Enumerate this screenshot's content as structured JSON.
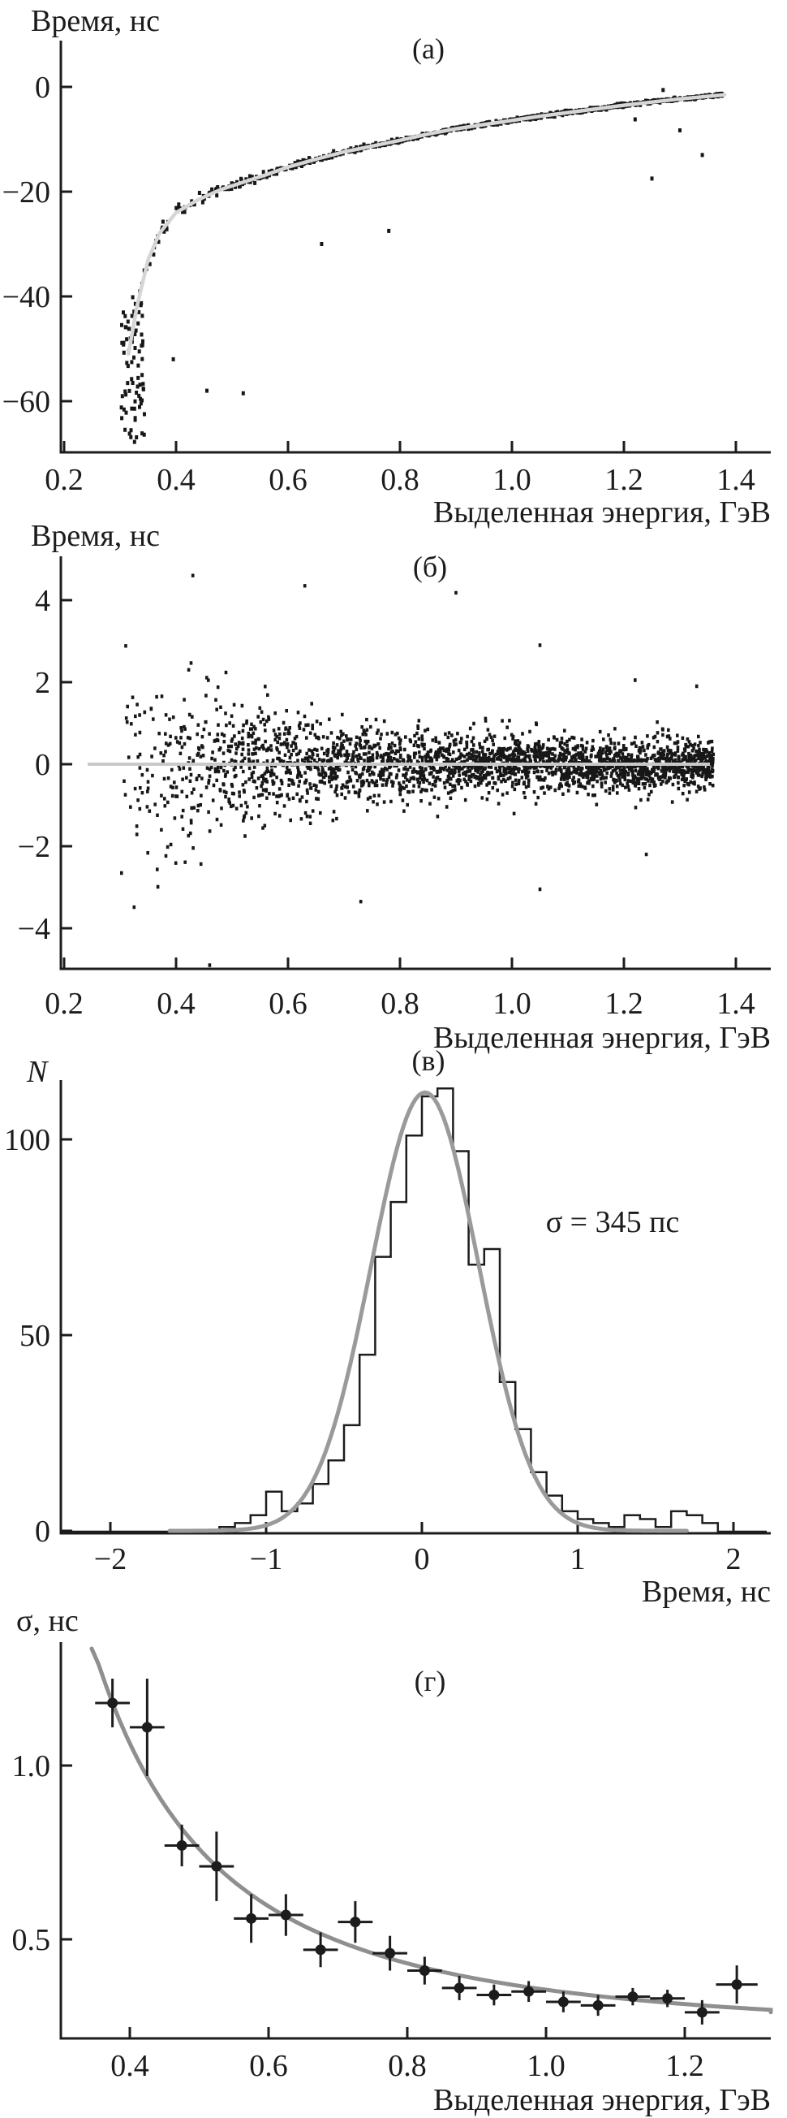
{
  "figure": {
    "description": "Four-panel timing/energy figure",
    "panel_letters": [
      "(а)",
      "(б)",
      "(в)",
      "(г)"
    ]
  },
  "palette": {
    "ink": "#1c1c1c",
    "point_black": "#171717",
    "light_curve": "#d6d6d6",
    "zero_line_gray": "#c9c9c9",
    "gauss_gray": "#9a9a9a",
    "fit_gray": "#8f8f8f"
  },
  "chart_data": [
    {
      "panel": "а",
      "title": "(а)",
      "type": "scatter",
      "xlabel": "Выделенная энергия, ГэВ",
      "ylabel": "Время, нс",
      "xlim": [
        0.2,
        1.47
      ],
      "ylim": [
        -71,
        9
      ],
      "grid": false,
      "x_ticks": [
        0.2,
        0.4,
        0.6,
        0.8,
        1.0,
        1.2,
        1.4
      ],
      "x_tick_labels": [
        "0.2",
        "0.4",
        "0.6",
        "0.8",
        "1.0",
        "1.2",
        "1.4"
      ],
      "y_ticks": [
        0,
        -20,
        -40,
        -60
      ],
      "y_tick_labels": [
        "0",
        "−20",
        "−40",
        "−60"
      ],
      "fit_curve": [
        [
          0.315,
          -51
        ],
        [
          0.33,
          -42
        ],
        [
          0.35,
          -33
        ],
        [
          0.37,
          -28
        ],
        [
          0.4,
          -24
        ],
        [
          0.44,
          -21.5
        ],
        [
          0.48,
          -19.6
        ],
        [
          0.52,
          -18.2
        ],
        [
          0.56,
          -16.8
        ],
        [
          0.6,
          -15.3
        ],
        [
          0.65,
          -13.8
        ],
        [
          0.7,
          -12.4
        ],
        [
          0.75,
          -11.3
        ],
        [
          0.8,
          -10.2
        ],
        [
          0.85,
          -9.0
        ],
        [
          0.9,
          -8.0
        ],
        [
          0.95,
          -7.2
        ],
        [
          1.0,
          -6.4
        ],
        [
          1.05,
          -5.6
        ],
        [
          1.1,
          -4.9
        ],
        [
          1.15,
          -4.2
        ],
        [
          1.2,
          -3.5
        ],
        [
          1.25,
          -2.9
        ],
        [
          1.3,
          -2.3
        ],
        [
          1.35,
          -1.8
        ],
        [
          1.38,
          -1.5
        ]
      ],
      "scatter_params": {
        "n": 850,
        "seed": 7,
        "x_min": 0.33,
        "x_span": 1.05,
        "x_pow": 0.7,
        "noise_scale": 0.5,
        "sigma_fit": {
          "a": 0.22,
          "b": 0.135
        }
      },
      "cliff_cluster": {
        "n": 80,
        "x_min": 0.302,
        "x_span": 0.042,
        "t_range": [
          -68,
          -40
        ]
      },
      "outliers": [
        [
          1.27,
          -0.6
        ],
        [
          1.34,
          -13
        ],
        [
          1.3,
          -8.3
        ],
        [
          1.22,
          -6.2
        ],
        [
          1.25,
          -17.5
        ],
        [
          0.78,
          -27.5
        ],
        [
          0.52,
          -58.5
        ],
        [
          0.455,
          -58
        ],
        [
          0.395,
          -52
        ],
        [
          0.66,
          -30
        ],
        [
          0.36,
          -32
        ]
      ]
    },
    {
      "panel": "б",
      "title": "(б)",
      "type": "scatter",
      "xlabel": "Выделенная энергия, ГэВ",
      "ylabel": "Время, нс",
      "xlim": [
        0.2,
        1.47
      ],
      "ylim": [
        -5,
        5
      ],
      "grid": false,
      "x_ticks": [
        0.2,
        0.4,
        0.6,
        0.8,
        1.0,
        1.2,
        1.4
      ],
      "x_tick_labels": [
        "0.2",
        "0.4",
        "0.6",
        "0.8",
        "1.0",
        "1.2",
        "1.4"
      ],
      "y_ticks": [
        4,
        2,
        0,
        -2,
        -4
      ],
      "y_tick_labels": [
        "4",
        "2",
        "0",
        "−2",
        "−4"
      ],
      "zero_line_y": 0,
      "scatter_params": {
        "n": 2600,
        "seed": 13,
        "x_min": 0.3,
        "x_span": 1.06,
        "x_pow": 0.7,
        "sigma_fit": {
          "a": 0.22,
          "b": 0.135
        }
      },
      "outliers": [
        [
          0.63,
          4.35
        ],
        [
          0.9,
          4.18
        ],
        [
          1.05,
          2.9
        ],
        [
          1.22,
          2.05
        ],
        [
          1.33,
          1.9
        ],
        [
          0.73,
          -3.35
        ],
        [
          1.05,
          -3.05
        ],
        [
          1.24,
          -2.2
        ],
        [
          0.46,
          -4.9
        ],
        [
          0.43,
          4.6
        ]
      ]
    },
    {
      "panel": "в",
      "title": "(в)",
      "type": "histogram",
      "xlabel": "Время, нс",
      "ylabel": "N",
      "annotation": "σ = 345 пс",
      "sigma_ps": 345,
      "xlim": [
        -2.3,
        2.3
      ],
      "ylim": [
        0,
        115
      ],
      "grid": false,
      "x_ticks": [
        -2,
        -1,
        0,
        1,
        2
      ],
      "x_tick_labels": [
        "−2",
        "−1",
        "0",
        "1",
        "2"
      ],
      "y_ticks": [
        0,
        50,
        100
      ],
      "y_tick_labels": [
        "0",
        "50",
        "100"
      ],
      "bin_width": 0.1,
      "bins": [
        [
          -1.3,
          1
        ],
        [
          -1.2,
          2
        ],
        [
          -1.1,
          4
        ],
        [
          -1.0,
          10
        ],
        [
          -0.9,
          5
        ],
        [
          -0.8,
          7
        ],
        [
          -0.7,
          12
        ],
        [
          -0.6,
          18
        ],
        [
          -0.5,
          27
        ],
        [
          -0.4,
          45
        ],
        [
          -0.3,
          70
        ],
        [
          -0.2,
          84
        ],
        [
          -0.1,
          101
        ],
        [
          0.0,
          111
        ],
        [
          0.1,
          113
        ],
        [
          0.2,
          97
        ],
        [
          0.3,
          68
        ],
        [
          0.4,
          72
        ],
        [
          0.5,
          38
        ],
        [
          0.6,
          26
        ],
        [
          0.7,
          15
        ],
        [
          0.8,
          9
        ],
        [
          0.9,
          5
        ],
        [
          1.0,
          3
        ],
        [
          1.1,
          2
        ],
        [
          1.2,
          1
        ],
        [
          1.3,
          4
        ],
        [
          1.4,
          3
        ],
        [
          1.5,
          1
        ],
        [
          1.6,
          5
        ],
        [
          1.7,
          4
        ],
        [
          1.8,
          2
        ]
      ],
      "gauss_fit": {
        "amp": 112,
        "mean": 0.02,
        "sigma": 0.345
      }
    },
    {
      "panel": "г",
      "title": "(г)",
      "type": "scatter-errorbars",
      "xlabel": "Выделенная энергия, ГэВ",
      "ylabel": "σ, нс",
      "xlim": [
        0.3,
        1.4
      ],
      "ylim": [
        0.2,
        1.35
      ],
      "grid": false,
      "x_ticks": [
        0.4,
        0.6,
        0.8,
        1.0,
        1.2
      ],
      "x_tick_labels": [
        "0.4",
        "0.6",
        "0.8",
        "1.0",
        "1.2"
      ],
      "y_ticks": [
        1.0,
        0.5
      ],
      "y_tick_labels": [
        "1.0",
        "0.5"
      ],
      "points_format": "[E_GeV, sigma_ns, x_err, y_err]",
      "points": [
        [
          0.375,
          1.18,
          0.025,
          0.07
        ],
        [
          0.425,
          1.11,
          0.025,
          0.14
        ],
        [
          0.475,
          0.77,
          0.025,
          0.06
        ],
        [
          0.525,
          0.71,
          0.025,
          0.1
        ],
        [
          0.575,
          0.56,
          0.025,
          0.07
        ],
        [
          0.625,
          0.57,
          0.025,
          0.06
        ],
        [
          0.675,
          0.47,
          0.025,
          0.05
        ],
        [
          0.725,
          0.55,
          0.025,
          0.06
        ],
        [
          0.775,
          0.46,
          0.025,
          0.05
        ],
        [
          0.825,
          0.41,
          0.025,
          0.04
        ],
        [
          0.875,
          0.36,
          0.025,
          0.035
        ],
        [
          0.925,
          0.34,
          0.025,
          0.03
        ],
        [
          0.975,
          0.35,
          0.025,
          0.03
        ],
        [
          1.025,
          0.32,
          0.025,
          0.03
        ],
        [
          1.075,
          0.31,
          0.025,
          0.03
        ],
        [
          1.125,
          0.335,
          0.025,
          0.025
        ],
        [
          1.175,
          0.33,
          0.025,
          0.025
        ],
        [
          1.225,
          0.29,
          0.025,
          0.035
        ],
        [
          1.275,
          0.37,
          0.03,
          0.055
        ]
      ],
      "fit": {
        "formula": "sigma = a + b/E^2",
        "a": 0.22,
        "b": 0.135,
        "x_range": [
          0.345,
          1.39
        ]
      }
    }
  ]
}
